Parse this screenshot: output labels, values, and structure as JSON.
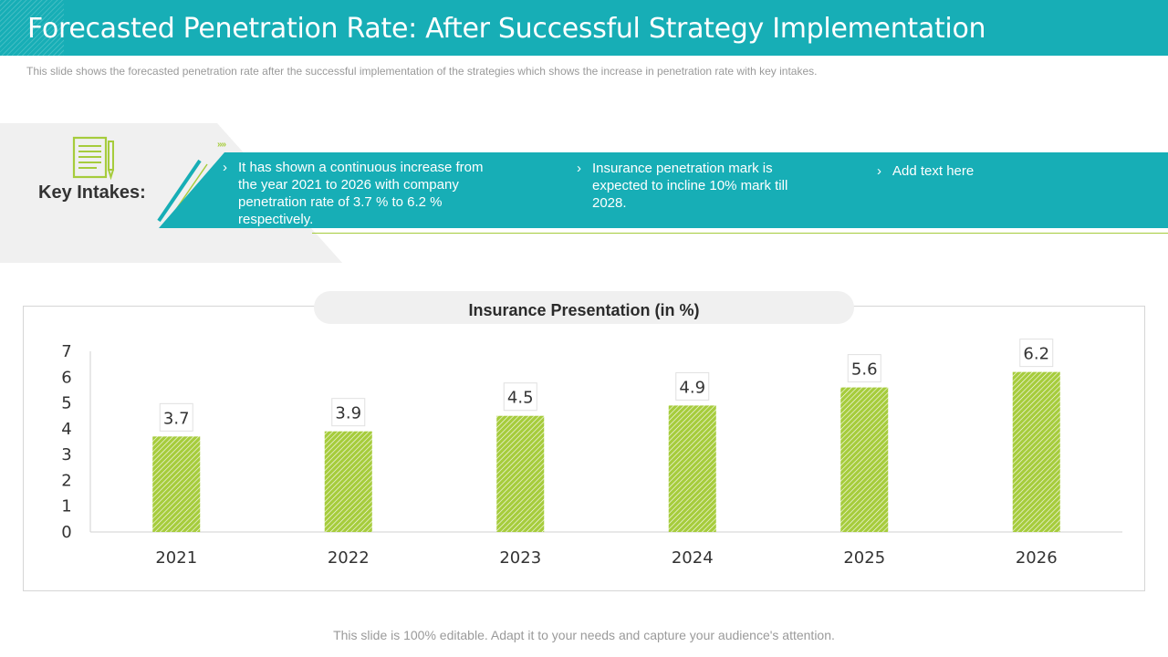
{
  "title": "Forecasted Penetration Rate: After Successful Strategy Implementation",
  "subtitle": "This slide shows the forecasted penetration rate after the successful implementation of the strategies which shows the increase in penetration rate with key intakes.",
  "key_intakes": {
    "label": "Key Intakes:",
    "bullet_marker": "›",
    "chevrons": "»»",
    "points": [
      "It has shown a continuous increase from the year 2021 to 2026 with company penetration rate of 3.7 % to 6.2 % respectively.",
      "Insurance penetration mark is expected to incline 10% mark till 2028.",
      "Add text here"
    ]
  },
  "colors": {
    "accent": "#17aeb6",
    "bar": "#a6cc3c",
    "bar_hatch": "#ffffff"
  },
  "chart_data": {
    "type": "bar",
    "title": "Insurance Presentation (in %)",
    "categories": [
      "2021",
      "2022",
      "2023",
      "2024",
      "2025",
      "2026"
    ],
    "values": [
      3.7,
      3.9,
      4.5,
      4.9,
      5.6,
      6.2
    ],
    "data_labels": [
      "3.7",
      "3.9",
      "4.5",
      "4.9",
      "5.6",
      "6.2"
    ],
    "yticks": [
      "0",
      "1",
      "2",
      "3",
      "4",
      "5",
      "6",
      "7"
    ],
    "ylim": [
      0,
      7
    ],
    "xlabel": "",
    "ylabel": "",
    "grid": false,
    "legend": "none"
  },
  "footer": "This slide is 100% editable. Adapt it to your needs and capture your audience's attention."
}
